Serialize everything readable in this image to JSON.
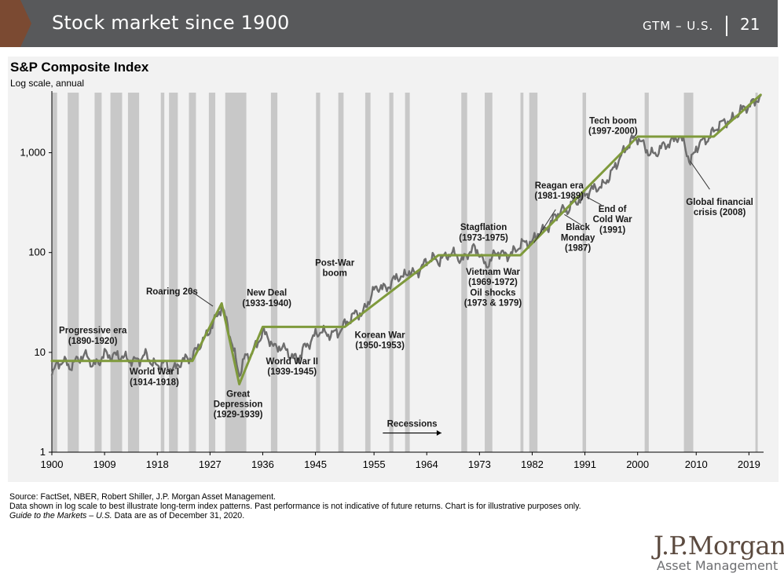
{
  "header": {
    "title": "Stock market since 1900",
    "section": "GTM – U.S.",
    "page_number": "21",
    "background_color": "#58595b",
    "chevron_color": "#7b4a32"
  },
  "chart_data": {
    "type": "line",
    "title": "S&P Composite Index",
    "subtitle": "Log scale, annual",
    "xlim": [
      1900,
      2021.5
    ],
    "ylim": [
      1,
      4000
    ],
    "yscale": "log",
    "x_ticks": [
      1900,
      1909,
      1918,
      1927,
      1936,
      1945,
      1955,
      1964,
      1973,
      1982,
      1991,
      2000,
      2010,
      2019
    ],
    "y_ticks": [
      {
        "value": 1,
        "label": "1"
      },
      {
        "value": 10,
        "label": "10"
      },
      {
        "value": 100,
        "label": "100"
      },
      {
        "value": 1000,
        "label": "1,000"
      }
    ],
    "recession_label": "Recessions",
    "recessions": [
      [
        1900.0,
        1900.9
      ],
      [
        1902.7,
        1904.6
      ],
      [
        1907.3,
        1908.5
      ],
      [
        1910.0,
        1912.0
      ],
      [
        1913.0,
        1914.9
      ],
      [
        1918.6,
        1919.2
      ],
      [
        1920.0,
        1921.5
      ],
      [
        1923.4,
        1924.6
      ],
      [
        1926.8,
        1927.9
      ],
      [
        1929.6,
        1933.2
      ],
      [
        1937.4,
        1938.5
      ],
      [
        1945.1,
        1945.8
      ],
      [
        1948.9,
        1949.8
      ],
      [
        1953.5,
        1954.4
      ],
      [
        1957.6,
        1958.3
      ],
      [
        1960.3,
        1961.1
      ],
      [
        1969.9,
        1970.9
      ],
      [
        1973.9,
        1975.2
      ],
      [
        1980.0,
        1980.5
      ],
      [
        1981.5,
        1982.9
      ],
      [
        1990.6,
        1991.2
      ],
      [
        2001.2,
        2001.9
      ],
      [
        2007.9,
        2009.5
      ],
      [
        2020.1,
        2020.4
      ]
    ],
    "series": [
      {
        "name": "S&P Composite Index",
        "color": "#6d6d6d",
        "points": [
          [
            1900,
            6.2
          ],
          [
            1901,
            7.6
          ],
          [
            1902,
            8.3
          ],
          [
            1903,
            7.1
          ],
          [
            1904,
            8.1
          ],
          [
            1905,
            9.0
          ],
          [
            1906,
            9.3
          ],
          [
            1907,
            7.4
          ],
          [
            1908,
            8.0
          ],
          [
            1909,
            9.7
          ],
          [
            1910,
            9.2
          ],
          [
            1911,
            9.3
          ],
          [
            1912,
            9.1
          ],
          [
            1913,
            8.5
          ],
          [
            1914,
            8.2
          ],
          [
            1915,
            8.5
          ],
          [
            1916,
            9.5
          ],
          [
            1917,
            8.0
          ],
          [
            1918,
            7.2
          ],
          [
            1919,
            8.0
          ],
          [
            1920,
            7.0
          ],
          [
            1921,
            6.8
          ],
          [
            1922,
            8.0
          ],
          [
            1923,
            8.6
          ],
          [
            1924,
            9.0
          ],
          [
            1925,
            11.5
          ],
          [
            1926,
            13.5
          ],
          [
            1927,
            17.0
          ],
          [
            1928,
            22.0
          ],
          [
            1929,
            29.0
          ],
          [
            1930,
            19.0
          ],
          [
            1931,
            10.5
          ],
          [
            1932,
            6.0
          ],
          [
            1933,
            9.0
          ],
          [
            1934,
            9.5
          ],
          [
            1935,
            12.0
          ],
          [
            1936,
            16.0
          ],
          [
            1937,
            14.0
          ],
          [
            1938,
            11.0
          ],
          [
            1939,
            11.5
          ],
          [
            1940,
            10.5
          ],
          [
            1941,
            9.0
          ],
          [
            1942,
            8.5
          ],
          [
            1943,
            11.0
          ],
          [
            1944,
            12.5
          ],
          [
            1945,
            15.0
          ],
          [
            1946,
            16.5
          ],
          [
            1947,
            15.0
          ],
          [
            1948,
            15.5
          ],
          [
            1949,
            16.0
          ],
          [
            1950,
            19.0
          ],
          [
            1951,
            22.0
          ],
          [
            1952,
            25.0
          ],
          [
            1953,
            24.0
          ],
          [
            1954,
            32.0
          ],
          [
            1955,
            42.0
          ],
          [
            1956,
            46.0
          ],
          [
            1957,
            43.0
          ],
          [
            1958,
            50.0
          ],
          [
            1959,
            58.0
          ],
          [
            1960,
            56.0
          ],
          [
            1961,
            66.0
          ],
          [
            1962,
            60.0
          ],
          [
            1963,
            70.0
          ],
          [
            1964,
            82.0
          ],
          [
            1965,
            88.0
          ],
          [
            1966,
            82.0
          ],
          [
            1967,
            90.0
          ],
          [
            1968,
            98.0
          ],
          [
            1969,
            95.0
          ],
          [
            1970,
            82.0
          ],
          [
            1971,
            98.0
          ],
          [
            1972,
            110.0
          ],
          [
            1973,
            100.0
          ],
          [
            1974,
            72.0
          ],
          [
            1975,
            86.0
          ],
          [
            1976,
            102.0
          ],
          [
            1977,
            96.0
          ],
          [
            1978,
            94.0
          ],
          [
            1979,
            103.0
          ],
          [
            1980,
            120.0
          ],
          [
            1981,
            127.0
          ],
          [
            1982,
            125.0
          ],
          [
            1983,
            160.0
          ],
          [
            1984,
            165.0
          ],
          [
            1985,
            190.0
          ],
          [
            1986,
            235.0
          ],
          [
            1987,
            265.0
          ],
          [
            1988,
            265.0
          ],
          [
            1989,
            320.0
          ],
          [
            1990,
            335.0
          ],
          [
            1991,
            380.0
          ],
          [
            1992,
            420.0
          ],
          [
            1993,
            450.0
          ],
          [
            1994,
            460.0
          ],
          [
            1995,
            560.0
          ],
          [
            1996,
            700.0
          ],
          [
            1997,
            900.0
          ],
          [
            1998,
            1100.0
          ],
          [
            1999,
            1350.0
          ],
          [
            2000,
            1420.0
          ],
          [
            2001,
            1190.0
          ],
          [
            2002,
            990.0
          ],
          [
            2003,
            960.0
          ],
          [
            2004,
            1130.0
          ],
          [
            2005,
            1210.0
          ],
          [
            2006,
            1310.0
          ],
          [
            2007,
            1480.0
          ],
          [
            2008,
            1220.0
          ],
          [
            2009,
            780.0
          ],
          [
            2010,
            1130.0
          ],
          [
            2011,
            1300.0
          ],
          [
            2012,
            1380.0
          ],
          [
            2013,
            1640.0
          ],
          [
            2014,
            1930.0
          ],
          [
            2015,
            2060.0
          ],
          [
            2016,
            2090.0
          ],
          [
            2017,
            2450.0
          ],
          [
            2018,
            2750.0
          ],
          [
            2019,
            2950.0
          ],
          [
            2020,
            3250.0
          ],
          [
            2021,
            3750.0
          ]
        ]
      },
      {
        "name": "Trend",
        "color": "#7f9a3c",
        "points": [
          [
            1900,
            8.2
          ],
          [
            1924,
            8.2
          ],
          [
            1929,
            31.0
          ],
          [
            1932,
            4.8
          ],
          [
            1936,
            18.0
          ],
          [
            1950,
            18.0
          ],
          [
            1966,
            94.0
          ],
          [
            1980,
            94.0
          ],
          [
            2000,
            1450.0
          ],
          [
            2013,
            1450.0
          ],
          [
            2021,
            3800.0
          ]
        ]
      }
    ],
    "annotations": [
      {
        "lines": [
          "Progressive era",
          "(1890-1920)"
        ],
        "x": 1907.0,
        "y": 15.5
      },
      {
        "lines": [
          "World War I",
          "(1914-1918)"
        ],
        "x": 1917.5,
        "y": 6.0
      },
      {
        "lines": [
          "Roaring 20s"
        ],
        "x": 1920.5,
        "y": 38.0
      },
      {
        "lines": [
          "Great",
          "Depression",
          "(1929-1939)"
        ],
        "x": 1931.8,
        "y": 3.6
      },
      {
        "lines": [
          "New Deal",
          "(1933-1940)"
        ],
        "x": 1936.7,
        "y": 37.0
      },
      {
        "lines": [
          "World War II",
          "(1939-1945)"
        ],
        "x": 1941.0,
        "y": 7.6
      },
      {
        "lines": [
          "Post-War",
          "boom"
        ],
        "x": 1948.3,
        "y": 74.0
      },
      {
        "lines": [
          "Korean War",
          "(1950-1953)"
        ],
        "x": 1956.0,
        "y": 14.0
      },
      {
        "lines": [
          "Stagflation",
          "(1973-1975)"
        ],
        "x": 1973.7,
        "y": 168.0
      },
      {
        "lines": [
          "Vietnam War",
          "(1969-1972)",
          "Oil shocks",
          "(1973 & 1979)"
        ],
        "x": 1975.3,
        "y": 60.0
      },
      {
        "lines": [
          "Reagan era",
          "(1981-1989)"
        ],
        "x": 1986.6,
        "y": 440.0
      },
      {
        "lines": [
          "Black",
          "Monday",
          "(1987)"
        ],
        "x": 1989.8,
        "y": 168.0
      },
      {
        "lines": [
          "End of",
          "Cold War",
          "(1991)"
        ],
        "x": 1995.7,
        "y": 255.0
      },
      {
        "lines": [
          "Tech boom",
          "(1997-2000)"
        ],
        "x": 1995.8,
        "y": 1960.0
      },
      {
        "lines": [
          "Global financial",
          "crisis (2008)"
        ],
        "x": 2014.0,
        "y": 300.0
      }
    ]
  },
  "footnotes": {
    "source": "Source: FactSet, NBER, Robert Shiller, J.P. Morgan Asset Management.",
    "disclaimer": "Data shown in log scale to best illustrate long-term index patterns. Past performance is not indicative of future returns. Chart is for illustrative purposes only.",
    "guide_italic": "Guide to the Markets – U.S.",
    "guide_rest": " Data are as of December 31, 2020."
  },
  "logo": {
    "main": "J.P.Morgan",
    "sub": "Asset Management"
  }
}
